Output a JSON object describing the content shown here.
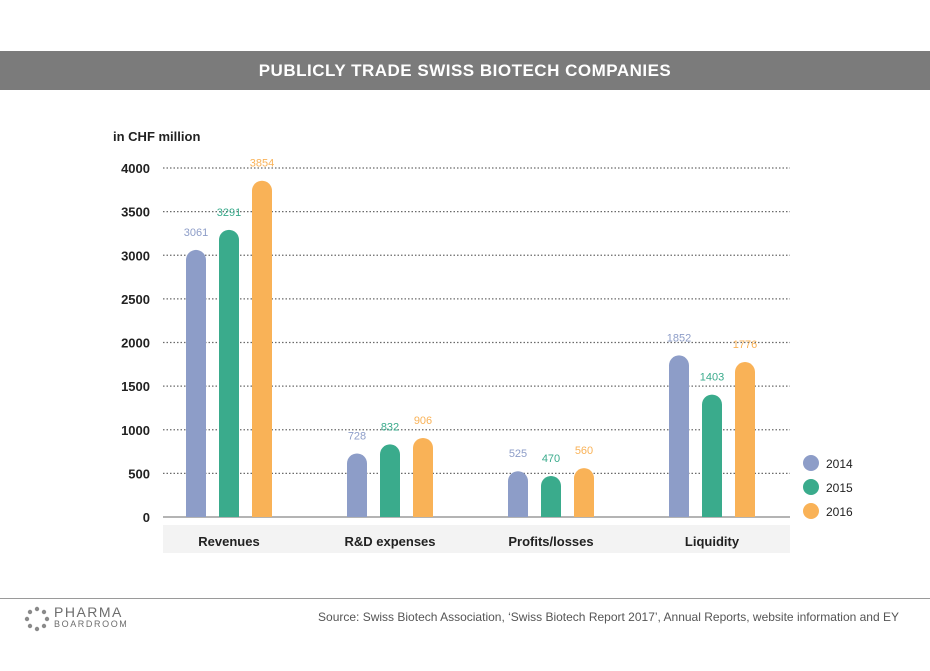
{
  "chart_data": {
    "type": "bar",
    "title": "PUBLICLY TRADE SWISS BIOTECH COMPANIES",
    "ylabel": "in CHF million",
    "categories": [
      "Revenues",
      "R&D expenses",
      "Profits/losses",
      "Liquidity"
    ],
    "series": [
      {
        "name": "2014",
        "color": "#8d9dc8",
        "values": [
          3061,
          728,
          525,
          1852
        ]
      },
      {
        "name": "2015",
        "color": "#3aab8c",
        "values": [
          3291,
          832,
          470,
          1403
        ]
      },
      {
        "name": "2016",
        "color": "#f9b257",
        "values": [
          3854,
          906,
          560,
          1776
        ]
      }
    ],
    "yticks": [
      0,
      500,
      1000,
      1500,
      2000,
      2500,
      3000,
      3500,
      4000
    ],
    "ylim": [
      0,
      4000
    ],
    "grid": "dotted horizontal",
    "legend": "bottom-right"
  },
  "footer": {
    "logo_line1": "PHARMA",
    "logo_line2": "BOARDROOM",
    "source": "Source: Swiss Biotech Association, ‘Swiss Biotech Report 2017’, Annual Reports, website information and EY"
  }
}
